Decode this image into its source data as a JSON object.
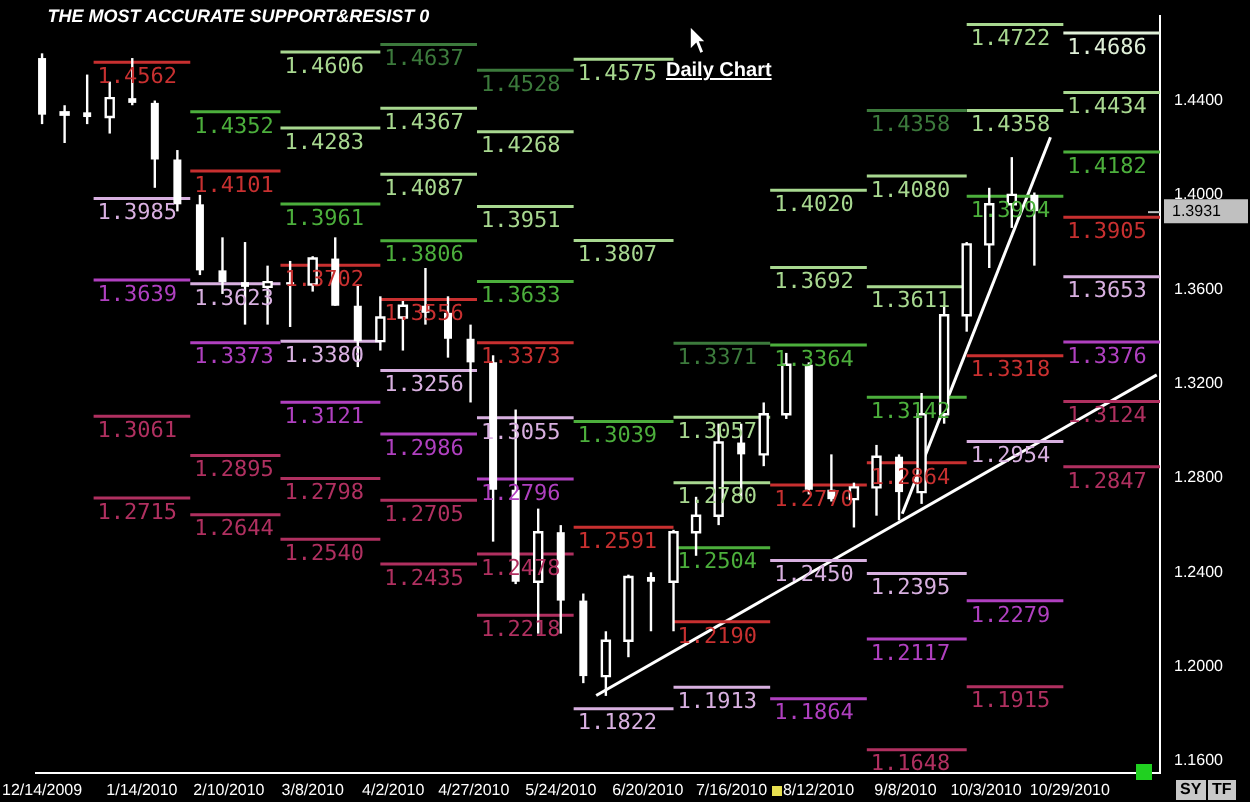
{
  "chart_data": {
    "type": "candlestick",
    "title": "THE MOST ACCURATE SUPPORT&RESIST 0",
    "annotations": [
      "Daily Chart",
      "SY",
      "TF"
    ],
    "x": [
      "2009-12-14",
      "2009-12-21",
      "2009-12-28",
      "2010-01-04",
      "2010-01-11",
      "2010-01-18",
      "2010-01-25",
      "2010-02-01",
      "2010-02-08",
      "2010-02-15",
      "2010-02-22",
      "2010-03-01",
      "2010-03-08",
      "2010-03-15",
      "2010-03-22",
      "2010-03-29",
      "2010-04-05",
      "2010-04-12",
      "2010-04-19",
      "2010-04-26",
      "2010-05-03",
      "2010-05-10",
      "2010-05-17",
      "2010-05-24",
      "2010-05-31",
      "2010-06-07",
      "2010-06-14",
      "2010-06-21",
      "2010-06-28",
      "2010-07-05",
      "2010-07-12",
      "2010-07-19",
      "2010-07-26",
      "2010-08-02",
      "2010-08-09",
      "2010-08-16",
      "2010-08-23",
      "2010-08-30",
      "2010-09-06",
      "2010-09-13",
      "2010-09-20",
      "2010-09-27",
      "2010-10-04",
      "2010-10-11",
      "2010-10-18"
    ],
    "ohlc": [
      [
        1.458,
        1.46,
        1.43,
        1.434
      ],
      [
        1.434,
        1.438,
        1.422,
        1.435
      ],
      [
        1.435,
        1.451,
        1.43,
        1.433
      ],
      [
        1.433,
        1.448,
        1.426,
        1.441
      ],
      [
        1.441,
        1.458,
        1.438,
        1.439
      ],
      [
        1.439,
        1.44,
        1.403,
        1.415
      ],
      [
        1.415,
        1.419,
        1.393,
        1.396
      ],
      [
        1.396,
        1.4,
        1.366,
        1.368
      ],
      [
        1.368,
        1.382,
        1.358,
        1.363
      ],
      [
        1.363,
        1.38,
        1.345,
        1.361
      ],
      [
        1.361,
        1.37,
        1.345,
        1.363
      ],
      [
        1.363,
        1.372,
        1.344,
        1.362
      ],
      [
        1.362,
        1.374,
        1.359,
        1.373
      ],
      [
        1.373,
        1.382,
        1.353,
        1.353
      ],
      [
        1.353,
        1.362,
        1.327,
        1.338
      ],
      [
        1.338,
        1.357,
        1.334,
        1.348
      ],
      [
        1.348,
        1.355,
        1.334,
        1.353
      ],
      [
        1.353,
        1.369,
        1.345,
        1.35
      ],
      [
        1.35,
        1.357,
        1.331,
        1.339
      ],
      [
        1.339,
        1.345,
        1.312,
        1.329
      ],
      [
        1.329,
        1.332,
        1.253,
        1.275
      ],
      [
        1.275,
        1.309,
        1.235,
        1.236
      ],
      [
        1.236,
        1.267,
        1.214,
        1.257
      ],
      [
        1.257,
        1.26,
        1.214,
        1.228
      ],
      [
        1.228,
        1.231,
        1.193,
        1.196
      ],
      [
        1.196,
        1.215,
        1.1876,
        1.211
      ],
      [
        1.211,
        1.239,
        1.204,
        1.238
      ],
      [
        1.238,
        1.24,
        1.215,
        1.236
      ],
      [
        1.236,
        1.258,
        1.215,
        1.257
      ],
      [
        1.257,
        1.272,
        1.247,
        1.264
      ],
      [
        1.264,
        1.303,
        1.26,
        1.295
      ],
      [
        1.295,
        1.303,
        1.271,
        1.29
      ],
      [
        1.29,
        1.312,
        1.285,
        1.307
      ],
      [
        1.307,
        1.333,
        1.305,
        1.328
      ],
      [
        1.328,
        1.329,
        1.273,
        1.275
      ],
      [
        1.275,
        1.29,
        1.27,
        1.271
      ],
      [
        1.271,
        1.278,
        1.259,
        1.276
      ],
      [
        1.276,
        1.294,
        1.264,
        1.289
      ],
      [
        1.289,
        1.29,
        1.262,
        1.274
      ],
      [
        1.274,
        1.316,
        1.269,
        1.307
      ],
      [
        1.307,
        1.353,
        1.303,
        1.349
      ],
      [
        1.349,
        1.38,
        1.342,
        1.379
      ],
      [
        1.379,
        1.403,
        1.369,
        1.396
      ],
      [
        1.396,
        1.416,
        1.386,
        1.4
      ],
      [
        1.4,
        1.401,
        1.37,
        1.3931
      ]
    ],
    "series": [
      {
        "name": "1.4562",
        "type": "line",
        "color": "#c83030",
        "x": [
          "2009-12-30",
          "2010-01-29"
        ],
        "values": [
          1.4562,
          1.4562
        ]
      },
      {
        "name": "1.3985",
        "type": "line",
        "color": "#d8b0e0",
        "x": [
          "2009-12-30",
          "2010-01-29"
        ],
        "values": [
          1.3985,
          1.3985
        ]
      },
      {
        "name": "1.3639",
        "type": "line",
        "color": "#b040c0",
        "x": [
          "2009-12-30",
          "2010-01-29"
        ],
        "values": [
          1.3639,
          1.3639
        ]
      },
      {
        "name": "1.3061",
        "type": "line",
        "color": "#b03060",
        "x": [
          "2009-12-30",
          "2010-01-29"
        ],
        "values": [
          1.3061,
          1.3061
        ]
      },
      {
        "name": "1.2715",
        "type": "line",
        "color": "#b03060",
        "x": [
          "2009-12-30",
          "2010-01-29"
        ],
        "values": [
          1.2715,
          1.2715
        ]
      },
      {
        "name": "1.4352",
        "type": "line",
        "color": "#4caf3c",
        "x": [
          "2010-01-29",
          "2010-02-26"
        ],
        "values": [
          1.4352,
          1.4352
        ]
      },
      {
        "name": "1.4101",
        "type": "line",
        "color": "#c83030",
        "x": [
          "2010-01-29",
          "2010-02-26"
        ],
        "values": [
          1.4101,
          1.4101
        ]
      },
      {
        "name": "1.3623",
        "type": "line",
        "color": "#d8b0e0",
        "x": [
          "2010-01-29",
          "2010-02-26"
        ],
        "values": [
          1.3623,
          1.3623
        ]
      },
      {
        "name": "1.3373",
        "type": "line",
        "color": "#b040c0",
        "x": [
          "2010-01-29",
          "2010-02-26"
        ],
        "values": [
          1.3373,
          1.3373
        ]
      },
      {
        "name": "1.2895",
        "type": "line",
        "color": "#b03060",
        "x": [
          "2010-01-29",
          "2010-02-26"
        ],
        "values": [
          1.2895,
          1.2895
        ]
      },
      {
        "name": "1.2644",
        "type": "line",
        "color": "#b03060",
        "x": [
          "2010-01-29",
          "2010-02-26"
        ],
        "values": [
          1.2644,
          1.2644
        ]
      },
      {
        "name": "1.4606",
        "type": "line",
        "color": "#a8d890",
        "x": [
          "2010-02-26",
          "2010-03-29"
        ],
        "values": [
          1.4606,
          1.4606
        ]
      },
      {
        "name": "1.4283",
        "type": "line",
        "color": "#a8d890",
        "x": [
          "2010-02-26",
          "2010-03-29"
        ],
        "values": [
          1.4283,
          1.4283
        ]
      },
      {
        "name": "1.3961",
        "type": "line",
        "color": "#4caf3c",
        "x": [
          "2010-02-26",
          "2010-03-29"
        ],
        "values": [
          1.3961,
          1.3961
        ]
      },
      {
        "name": "1.3702",
        "type": "line",
        "color": "#c83030",
        "x": [
          "2010-02-26",
          "2010-03-29"
        ],
        "values": [
          1.3702,
          1.3702
        ]
      },
      {
        "name": "1.3380",
        "type": "line",
        "color": "#d8b0e0",
        "x": [
          "2010-02-26",
          "2010-03-29"
        ],
        "values": [
          1.338,
          1.338
        ]
      },
      {
        "name": "1.3121",
        "type": "line",
        "color": "#b040c0",
        "x": [
          "2010-02-26",
          "2010-03-29"
        ],
        "values": [
          1.3121,
          1.3121
        ]
      },
      {
        "name": "1.2798",
        "type": "line",
        "color": "#b03060",
        "x": [
          "2010-02-26",
          "2010-03-29"
        ],
        "values": [
          1.2798,
          1.2798
        ]
      },
      {
        "name": "1.2540",
        "type": "line",
        "color": "#b03060",
        "x": [
          "2010-02-26",
          "2010-03-29"
        ],
        "values": [
          1.254,
          1.254
        ]
      },
      {
        "name": "1.4637",
        "type": "line",
        "color": "#3c7a3c",
        "x": [
          "2010-03-29",
          "2010-04-28"
        ],
        "values": [
          1.4637,
          1.4637
        ]
      },
      {
        "name": "1.4367",
        "type": "line",
        "color": "#a8d890",
        "x": [
          "2010-03-29",
          "2010-04-28"
        ],
        "values": [
          1.4367,
          1.4367
        ]
      },
      {
        "name": "1.4087",
        "type": "line",
        "color": "#a8d890",
        "x": [
          "2010-03-29",
          "2010-04-28"
        ],
        "values": [
          1.4087,
          1.4087
        ]
      },
      {
        "name": "1.3806",
        "type": "line",
        "color": "#4caf3c",
        "x": [
          "2010-03-29",
          "2010-04-28"
        ],
        "values": [
          1.3806,
          1.3806
        ]
      },
      {
        "name": "1.3556",
        "type": "line",
        "color": "#c83030",
        "x": [
          "2010-03-29",
          "2010-04-28"
        ],
        "values": [
          1.3556,
          1.3556
        ]
      },
      {
        "name": "1.3256",
        "type": "line",
        "color": "#d8b0e0",
        "x": [
          "2010-03-29",
          "2010-04-28"
        ],
        "values": [
          1.3256,
          1.3256
        ]
      },
      {
        "name": "1.2986",
        "type": "line",
        "color": "#b040c0",
        "x": [
          "2010-03-29",
          "2010-04-28"
        ],
        "values": [
          1.2986,
          1.2986
        ]
      },
      {
        "name": "1.2705",
        "type": "line",
        "color": "#b03060",
        "x": [
          "2010-03-29",
          "2010-04-28"
        ],
        "values": [
          1.2705,
          1.2705
        ]
      },
      {
        "name": "1.2435",
        "type": "line",
        "color": "#b03060",
        "x": [
          "2010-03-29",
          "2010-04-28"
        ],
        "values": [
          1.2435,
          1.2435
        ]
      },
      {
        "name": "1.4528",
        "type": "line",
        "color": "#3c7a3c",
        "x": [
          "2010-04-28",
          "2010-05-28"
        ],
        "values": [
          1.4528,
          1.4528
        ]
      },
      {
        "name": "1.4268",
        "type": "line",
        "color": "#a8d890",
        "x": [
          "2010-04-28",
          "2010-05-28"
        ],
        "values": [
          1.4268,
          1.4268
        ]
      },
      {
        "name": "1.3951",
        "type": "line",
        "color": "#a8d890",
        "x": [
          "2010-04-28",
          "2010-05-28"
        ],
        "values": [
          1.3951,
          1.3951
        ]
      },
      {
        "name": "1.3633",
        "type": "line",
        "color": "#4caf3c",
        "x": [
          "2010-04-28",
          "2010-05-28"
        ],
        "values": [
          1.3633,
          1.3633
        ]
      },
      {
        "name": "1.3373",
        "type": "line",
        "color": "#c83030",
        "x": [
          "2010-04-28",
          "2010-05-28"
        ],
        "values": [
          1.3373,
          1.3373
        ]
      },
      {
        "name": "1.3055",
        "type": "line",
        "color": "#d8b0e0",
        "x": [
          "2010-04-28",
          "2010-05-28"
        ],
        "values": [
          1.3055,
          1.3055
        ]
      },
      {
        "name": "1.2796",
        "type": "line",
        "color": "#b040c0",
        "x": [
          "2010-04-28",
          "2010-05-28"
        ],
        "values": [
          1.2796,
          1.2796
        ]
      },
      {
        "name": "1.2478",
        "type": "line",
        "color": "#b03060",
        "x": [
          "2010-04-28",
          "2010-05-28"
        ],
        "values": [
          1.2478,
          1.2478
        ]
      },
      {
        "name": "1.2218",
        "type": "line",
        "color": "#b03060",
        "x": [
          "2010-04-28",
          "2010-05-28"
        ],
        "values": [
          1.2218,
          1.2218
        ]
      },
      {
        "name": "1.4575",
        "type": "line",
        "color": "#a8d890",
        "x": [
          "2010-05-28",
          "2010-06-28"
        ],
        "values": [
          1.4575,
          1.4575
        ]
      },
      {
        "name": "1.3807",
        "type": "line",
        "color": "#a8d890",
        "x": [
          "2010-05-28",
          "2010-06-28"
        ],
        "values": [
          1.3807,
          1.3807
        ]
      },
      {
        "name": "1.3039",
        "type": "line",
        "color": "#4caf3c",
        "x": [
          "2010-05-28",
          "2010-06-28"
        ],
        "values": [
          1.3039,
          1.3039
        ]
      },
      {
        "name": "1.2591",
        "type": "line",
        "color": "#c83030",
        "x": [
          "2010-05-28",
          "2010-06-28"
        ],
        "values": [
          1.2591,
          1.2591
        ]
      },
      {
        "name": "1.1822",
        "type": "line",
        "color": "#d8b0e0",
        "x": [
          "2010-05-28",
          "2010-06-28"
        ],
        "values": [
          1.1822,
          1.1822
        ]
      },
      {
        "name": "1.3371",
        "type": "line",
        "color": "#3c7a3c",
        "x": [
          "2010-06-28",
          "2010-07-28"
        ],
        "values": [
          1.3371,
          1.3371
        ]
      },
      {
        "name": "1.3057",
        "type": "line",
        "color": "#a8d890",
        "x": [
          "2010-06-28",
          "2010-07-28"
        ],
        "values": [
          1.3057,
          1.3057
        ]
      },
      {
        "name": "1.2780",
        "type": "line",
        "color": "#a8d890",
        "x": [
          "2010-06-28",
          "2010-07-28"
        ],
        "values": [
          1.278,
          1.278
        ]
      },
      {
        "name": "1.2504",
        "type": "line",
        "color": "#4caf3c",
        "x": [
          "2010-06-28",
          "2010-07-28"
        ],
        "values": [
          1.2504,
          1.2504
        ]
      },
      {
        "name": "1.2190",
        "type": "line",
        "color": "#c83030",
        "x": [
          "2010-06-28",
          "2010-07-28"
        ],
        "values": [
          1.219,
          1.219
        ]
      },
      {
        "name": "1.1913",
        "type": "line",
        "color": "#d8b0e0",
        "x": [
          "2010-06-28",
          "2010-07-28"
        ],
        "values": [
          1.1913,
          1.1913
        ]
      },
      {
        "name": "1.4020",
        "type": "line",
        "color": "#a8d890",
        "x": [
          "2010-07-28",
          "2010-08-27"
        ],
        "values": [
          1.402,
          1.402
        ]
      },
      {
        "name": "1.3692",
        "type": "line",
        "color": "#a8d890",
        "x": [
          "2010-07-28",
          "2010-08-27"
        ],
        "values": [
          1.3692,
          1.3692
        ]
      },
      {
        "name": "1.3364",
        "type": "line",
        "color": "#4caf3c",
        "x": [
          "2010-07-28",
          "2010-08-27"
        ],
        "values": [
          1.3364,
          1.3364
        ]
      },
      {
        "name": "1.2770",
        "type": "line",
        "color": "#c83030",
        "x": [
          "2010-07-28",
          "2010-08-27"
        ],
        "values": [
          1.277,
          1.277
        ]
      },
      {
        "name": "1.2450",
        "type": "line",
        "color": "#d8b0e0",
        "x": [
          "2010-07-28",
          "2010-08-27"
        ],
        "values": [
          1.245,
          1.245
        ]
      },
      {
        "name": "1.1864",
        "type": "line",
        "color": "#b040c0",
        "x": [
          "2010-07-28",
          "2010-08-27"
        ],
        "values": [
          1.1864,
          1.1864
        ]
      },
      {
        "name": "1.4358",
        "type": "line",
        "color": "#3c7a3c",
        "x": [
          "2010-08-27",
          "2010-09-27"
        ],
        "values": [
          1.4358,
          1.4358
        ]
      },
      {
        "name": "1.4080",
        "type": "line",
        "color": "#a8d890",
        "x": [
          "2010-08-27",
          "2010-09-27"
        ],
        "values": [
          1.408,
          1.408
        ]
      },
      {
        "name": "1.3611",
        "type": "line",
        "color": "#a8d890",
        "x": [
          "2010-08-27",
          "2010-09-27"
        ],
        "values": [
          1.3611,
          1.3611
        ]
      },
      {
        "name": "1.3142",
        "type": "line",
        "color": "#4caf3c",
        "x": [
          "2010-08-27",
          "2010-09-27"
        ],
        "values": [
          1.3142,
          1.3142
        ]
      },
      {
        "name": "1.2864",
        "type": "line",
        "color": "#c83030",
        "x": [
          "2010-08-27",
          "2010-09-27"
        ],
        "values": [
          1.2864,
          1.2864
        ]
      },
      {
        "name": "1.2395",
        "type": "line",
        "color": "#d8b0e0",
        "x": [
          "2010-08-27",
          "2010-09-27"
        ],
        "values": [
          1.2395,
          1.2395
        ]
      },
      {
        "name": "1.2117",
        "type": "line",
        "color": "#b040c0",
        "x": [
          "2010-08-27",
          "2010-09-27"
        ],
        "values": [
          1.2117,
          1.2117
        ]
      },
      {
        "name": "1.1648",
        "type": "line",
        "color": "#b03060",
        "x": [
          "2010-08-27",
          "2010-09-27"
        ],
        "values": [
          1.1648,
          1.1648
        ]
      },
      {
        "name": "1.4722",
        "type": "line",
        "color": "#a8d890",
        "x": [
          "2010-09-27",
          "2010-10-27"
        ],
        "values": [
          1.4722,
          1.4722
        ]
      },
      {
        "name": "1.4358",
        "type": "line",
        "color": "#a8d890",
        "x": [
          "2010-09-27",
          "2010-10-27"
        ],
        "values": [
          1.4358,
          1.4358
        ]
      },
      {
        "name": "1.3994",
        "type": "line",
        "color": "#4caf3c",
        "x": [
          "2010-09-27",
          "2010-10-27"
        ],
        "values": [
          1.3994,
          1.3994
        ]
      },
      {
        "name": "1.3318",
        "type": "line",
        "color": "#c83030",
        "x": [
          "2010-09-27",
          "2010-10-27"
        ],
        "values": [
          1.3318,
          1.3318
        ]
      },
      {
        "name": "1.2954",
        "type": "line",
        "color": "#d8b0e0",
        "x": [
          "2010-09-27",
          "2010-10-27"
        ],
        "values": [
          1.2954,
          1.2954
        ]
      },
      {
        "name": "1.2279",
        "type": "line",
        "color": "#b040c0",
        "x": [
          "2010-09-27",
          "2010-10-27"
        ],
        "values": [
          1.2279,
          1.2279
        ]
      },
      {
        "name": "1.1915",
        "type": "line",
        "color": "#b03060",
        "x": [
          "2010-09-27",
          "2010-10-27"
        ],
        "values": [
          1.1915,
          1.1915
        ]
      },
      {
        "name": "1.4686",
        "type": "line",
        "color": "#e0f0d8",
        "x": [
          "2010-10-27",
          "2010-11-26"
        ],
        "values": [
          1.4686,
          1.4686
        ]
      },
      {
        "name": "1.4434",
        "type": "line",
        "color": "#a8d890",
        "x": [
          "2010-10-27",
          "2010-11-26"
        ],
        "values": [
          1.4434,
          1.4434
        ]
      },
      {
        "name": "1.4182",
        "type": "line",
        "color": "#4caf3c",
        "x": [
          "2010-10-27",
          "2010-11-26"
        ],
        "values": [
          1.4182,
          1.4182
        ]
      },
      {
        "name": "1.3905",
        "type": "line",
        "color": "#c83030",
        "x": [
          "2010-10-27",
          "2010-11-26"
        ],
        "values": [
          1.3905,
          1.3905
        ]
      },
      {
        "name": "1.3653",
        "type": "line",
        "color": "#d8b0e0",
        "x": [
          "2010-10-27",
          "2010-11-26"
        ],
        "values": [
          1.3653,
          1.3653
        ]
      },
      {
        "name": "1.3376",
        "type": "line",
        "color": "#b040c0",
        "x": [
          "2010-10-27",
          "2010-11-26"
        ],
        "values": [
          1.3376,
          1.3376
        ]
      },
      {
        "name": "1.3124",
        "type": "line",
        "color": "#b03060",
        "x": [
          "2010-10-27",
          "2010-11-26"
        ],
        "values": [
          1.3124,
          1.3124
        ]
      },
      {
        "name": "1.2847",
        "type": "line",
        "color": "#b03060",
        "x": [
          "2010-10-27",
          "2010-11-26"
        ],
        "values": [
          1.2847,
          1.2847
        ]
      },
      {
        "type": "line",
        "color": "#ffffff",
        "x": [
          "2010-06-04",
          "2010-11-25"
        ],
        "values": [
          1.1878,
          1.3237
        ]
      },
      {
        "type": "line",
        "color": "#ffffff",
        "x": [
          "2010-09-07",
          "2010-10-23"
        ],
        "values": [
          1.2648,
          1.4244
        ]
      }
    ],
    "xlim": [
      "2009-12-12",
      "2010-11-26"
    ],
    "xticks": [
      {
        "value": "2009-12-14",
        "label": "12/14/2009"
      },
      {
        "value": "2010-01-14",
        "label": "1/14/2010"
      },
      {
        "value": "2010-02-10",
        "label": "2/10/2010"
      },
      {
        "value": "2010-03-08",
        "label": "3/8/2010"
      },
      {
        "value": "2010-04-02",
        "label": "4/2/2010"
      },
      {
        "value": "2010-04-27",
        "label": "4/27/2010"
      },
      {
        "value": "2010-05-24",
        "label": "5/24/2010"
      },
      {
        "value": "2010-06-20",
        "label": "6/20/2010"
      },
      {
        "value": "2010-07-16",
        "label": "7/16/2010"
      },
      {
        "value": "2010-08-12",
        "label": "8/12/2010"
      },
      {
        "value": "2010-09-08",
        "label": "9/8/2010"
      },
      {
        "value": "2010-10-03",
        "label": "10/3/2010"
      },
      {
        "value": "2010-10-29",
        "label": "10/29/2010"
      }
    ],
    "ylim": [
      1.155,
      1.476
    ],
    "yticks": [
      {
        "value": 1.16,
        "label": "1.1600"
      },
      {
        "value": 1.2,
        "label": "1.2000"
      },
      {
        "value": 1.24,
        "label": "1.2400"
      },
      {
        "value": 1.28,
        "label": "1.2800"
      },
      {
        "value": 1.32,
        "label": "1.3200"
      },
      {
        "value": 1.36,
        "label": "1.3600"
      },
      {
        "value": 1.4,
        "label": "1.4000"
      },
      {
        "value": 1.44,
        "label": "1.4400"
      }
    ],
    "ref_lines": [
      {
        "axis": "y",
        "value": 1.3931,
        "label": "1.3931",
        "color": "#c0c0c0"
      }
    ],
    "grid": false,
    "legend": false
  }
}
